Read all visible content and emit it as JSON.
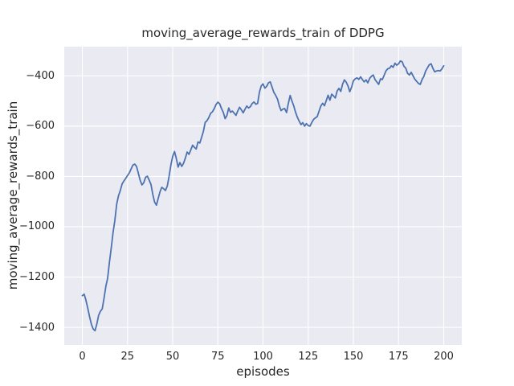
{
  "figure": {
    "title": "moving_average_rewards_train of DDPG",
    "xlabel": "episodes",
    "ylabel": "moving_average_rewards_train"
  },
  "colors": {
    "figure_bg": "#ffffff",
    "plot_bg": "#eaeaf2",
    "grid": "#ffffff",
    "line": "#4c72b0",
    "text": "#262626"
  },
  "axes": {
    "x_ticks": [
      0,
      25,
      50,
      75,
      100,
      125,
      150,
      175,
      200
    ],
    "y_ticks": [
      -400,
      -600,
      -800,
      -1000,
      -1200,
      -1400
    ],
    "xlim": [
      -10,
      210
    ],
    "ylim": [
      -1470,
      -284
    ]
  },
  "chart_data": {
    "type": "line",
    "title": "moving_average_rewards_train of DDPG",
    "xlabel": "episodes",
    "ylabel": "moving_average_rewards_train",
    "xlim": [
      -10,
      210
    ],
    "ylim": [
      -1470,
      -284
    ],
    "grid": true,
    "legend": false,
    "x_start": 0,
    "x_step": 1,
    "series": [
      {
        "name": "moving_average_rewards_train",
        "color": "#4c72b0",
        "values": [
          -1274,
          -1268,
          -1292,
          -1324,
          -1357,
          -1388,
          -1406,
          -1413,
          -1388,
          -1352,
          -1336,
          -1326,
          -1285,
          -1237,
          -1205,
          -1140,
          -1085,
          -1022,
          -975,
          -910,
          -877,
          -856,
          -830,
          -818,
          -808,
          -796,
          -786,
          -770,
          -755,
          -751,
          -760,
          -788,
          -815,
          -834,
          -825,
          -803,
          -799,
          -815,
          -832,
          -872,
          -902,
          -914,
          -887,
          -860,
          -843,
          -849,
          -856,
          -838,
          -800,
          -754,
          -720,
          -701,
          -728,
          -763,
          -745,
          -760,
          -748,
          -727,
          -703,
          -712,
          -695,
          -676,
          -684,
          -691,
          -663,
          -667,
          -645,
          -620,
          -585,
          -578,
          -566,
          -549,
          -543,
          -530,
          -514,
          -505,
          -511,
          -530,
          -545,
          -570,
          -558,
          -528,
          -545,
          -540,
          -548,
          -557,
          -540,
          -525,
          -535,
          -547,
          -533,
          -520,
          -528,
          -522,
          -510,
          -504,
          -513,
          -510,
          -465,
          -440,
          -432,
          -449,
          -442,
          -428,
          -424,
          -445,
          -466,
          -478,
          -492,
          -520,
          -538,
          -532,
          -530,
          -546,
          -510,
          -478,
          -500,
          -520,
          -545,
          -565,
          -580,
          -594,
          -586,
          -600,
          -590,
          -598,
          -600,
          -585,
          -573,
          -567,
          -562,
          -540,
          -520,
          -509,
          -519,
          -498,
          -477,
          -497,
          -473,
          -480,
          -488,
          -460,
          -450,
          -462,
          -434,
          -416,
          -425,
          -440,
          -463,
          -445,
          -420,
          -412,
          -408,
          -414,
          -404,
          -415,
          -424,
          -416,
          -428,
          -410,
          -402,
          -397,
          -415,
          -425,
          -434,
          -412,
          -415,
          -398,
          -381,
          -372,
          -370,
          -360,
          -366,
          -350,
          -358,
          -352,
          -341,
          -344,
          -362,
          -370,
          -390,
          -397,
          -386,
          -400,
          -413,
          -422,
          -430,
          -434,
          -415,
          -402,
          -381,
          -368,
          -356,
          -352,
          -370,
          -384,
          -381,
          -379,
          -381,
          -372,
          -360
        ]
      }
    ]
  }
}
